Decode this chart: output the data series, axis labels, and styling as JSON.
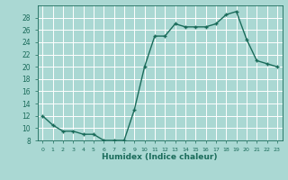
{
  "x": [
    0,
    1,
    2,
    3,
    4,
    5,
    6,
    7,
    8,
    9,
    10,
    11,
    12,
    13,
    14,
    15,
    16,
    17,
    18,
    19,
    20,
    21,
    22,
    23
  ],
  "y": [
    12,
    10.5,
    9.5,
    9.5,
    9,
    9,
    8,
    8,
    8,
    13,
    20,
    25,
    25,
    27,
    26.5,
    26.5,
    26.5,
    27,
    28.5,
    29,
    24.5,
    21,
    20.5,
    20
  ],
  "xlabel": "Humidex (Indice chaleur)",
  "line_color": "#1a6b5a",
  "marker": "+",
  "bg_color": "#aad8d3",
  "grid_color": "#ffffff",
  "tick_color": "#1a6b5a",
  "label_color": "#1a6b5a",
  "ylim": [
    8,
    30
  ],
  "yticks": [
    8,
    10,
    12,
    14,
    16,
    18,
    20,
    22,
    24,
    26,
    28
  ],
  "xlim": [
    -0.5,
    23.5
  ],
  "xtick_positions": [
    0,
    1,
    2,
    3,
    4,
    5,
    6,
    7,
    8,
    9,
    10,
    11,
    12,
    13,
    14,
    15,
    16,
    17,
    18,
    19,
    20,
    21,
    22,
    23
  ],
  "xtick_labels": [
    "0",
    "1",
    "2",
    "3",
    "4",
    "5",
    "6",
    "7",
    "8",
    "9",
    "10",
    "11",
    "12",
    "13",
    "14",
    "15",
    "16",
    "17",
    "18",
    "19",
    "20",
    "21",
    "22",
    "23"
  ]
}
